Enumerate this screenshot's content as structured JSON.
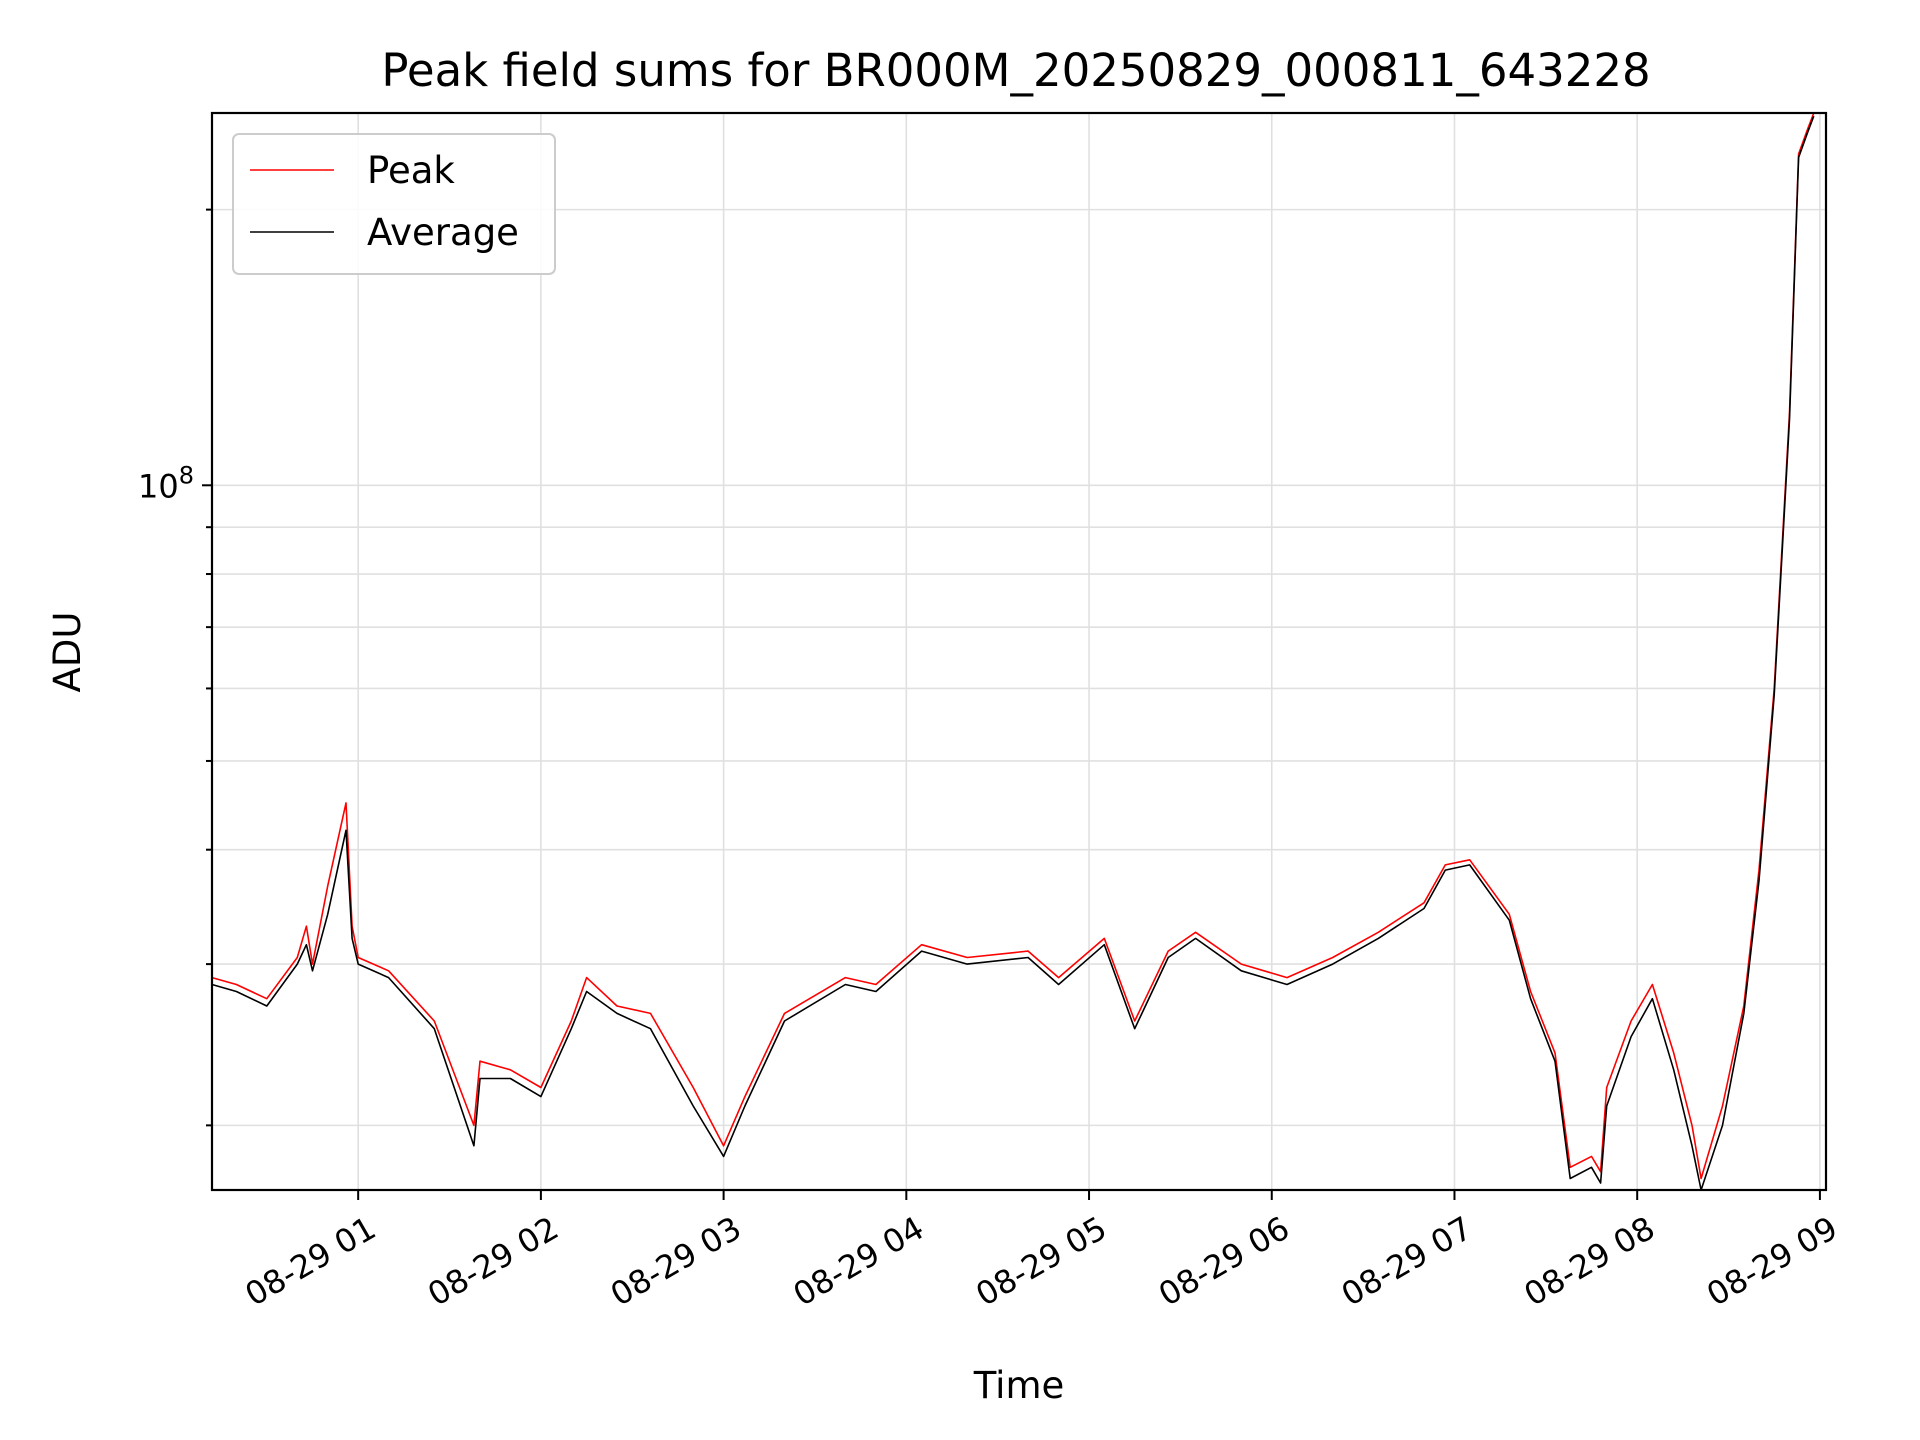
{
  "chart_data": {
    "type": "line",
    "title": "Peak field sums for BR000M_20250829_000811_643228",
    "xlabel": "Time",
    "ylabel": "ADU",
    "y_scale": "log",
    "grid": true,
    "legend_position": "top-left",
    "x_range": [
      "2025-08-29 00:12",
      "2025-08-29 09:02"
    ],
    "y_range": [
      17000000,
      255000000
    ],
    "x_ticks": [
      "08-29 01",
      "08-29 02",
      "08-29 03",
      "08-29 04",
      "08-29 05",
      "08-29 06",
      "08-29 07",
      "08-29 08",
      "08-29 09"
    ],
    "x_tick_times": [
      "2025-08-29 01:00",
      "2025-08-29 02:00",
      "2025-08-29 03:00",
      "2025-08-29 04:00",
      "2025-08-29 05:00",
      "2025-08-29 06:00",
      "2025-08-29 07:00",
      "2025-08-29 08:00",
      "2025-08-29 09:00"
    ],
    "y_major_tick": {
      "value": 100000000,
      "label_base": "10",
      "label_exp": "8"
    },
    "series": [
      {
        "name": "Peak",
        "color": "#ff0000",
        "x": [
          "2025-08-29 00:12",
          "2025-08-29 00:20",
          "2025-08-29 00:30",
          "2025-08-29 00:40",
          "2025-08-29 00:43",
          "2025-08-29 00:45",
          "2025-08-29 00:50",
          "2025-08-29 00:56",
          "2025-08-29 00:58",
          "2025-08-29 01:00",
          "2025-08-29 01:10",
          "2025-08-29 01:25",
          "2025-08-29 01:38",
          "2025-08-29 01:40",
          "2025-08-29 01:50",
          "2025-08-29 02:00",
          "2025-08-29 02:10",
          "2025-08-29 02:15",
          "2025-08-29 02:25",
          "2025-08-29 02:36",
          "2025-08-29 02:50",
          "2025-08-29 03:00",
          "2025-08-29 03:07",
          "2025-08-29 03:20",
          "2025-08-29 03:40",
          "2025-08-29 03:50",
          "2025-08-29 04:05",
          "2025-08-29 04:20",
          "2025-08-29 04:40",
          "2025-08-29 04:50",
          "2025-08-29 05:05",
          "2025-08-29 05:15",
          "2025-08-29 05:26",
          "2025-08-29 05:35",
          "2025-08-29 05:50",
          "2025-08-29 06:05",
          "2025-08-29 06:20",
          "2025-08-29 06:35",
          "2025-08-29 06:50",
          "2025-08-29 06:57",
          "2025-08-29 07:05",
          "2025-08-29 07:10",
          "2025-08-29 07:18",
          "2025-08-29 07:25",
          "2025-08-29 07:33",
          "2025-08-29 07:38",
          "2025-08-29 07:45",
          "2025-08-29 07:48",
          "2025-08-29 07:50",
          "2025-08-29 07:58",
          "2025-08-29 08:05",
          "2025-08-29 08:12",
          "2025-08-29 08:18",
          "2025-08-29 08:21",
          "2025-08-29 08:28",
          "2025-08-29 08:35",
          "2025-08-29 08:40",
          "2025-08-29 08:45",
          "2025-08-29 08:50",
          "2025-08-29 08:53",
          "2025-08-29 08:56",
          "2025-08-29 08:58"
        ],
        "values": [
          29000000,
          28500000,
          27500000,
          30500000,
          33000000,
          30000000,
          36500000,
          45000000,
          33000000,
          30500000,
          29500000,
          26000000,
          20000000,
          23500000,
          23000000,
          22000000,
          26000000,
          29000000,
          27000000,
          26500000,
          22000000,
          19000000,
          21500000,
          26500000,
          29000000,
          28500000,
          31500000,
          30500000,
          31000000,
          29000000,
          32000000,
          26000000,
          31000000,
          32500000,
          30000000,
          29000000,
          30500000,
          32500000,
          35000000,
          38500000,
          39000000,
          37000000,
          34000000,
          28000000,
          24000000,
          18000000,
          18500000,
          17800000,
          22000000,
          26000000,
          28500000,
          24000000,
          20000000,
          17500000,
          21000000,
          27000000,
          38000000,
          60000000,
          120000000,
          230000000,
          245000000,
          255000000
        ]
      },
      {
        "name": "Average",
        "color": "#000000",
        "x": [
          "2025-08-29 00:12",
          "2025-08-29 00:20",
          "2025-08-29 00:30",
          "2025-08-29 00:40",
          "2025-08-29 00:43",
          "2025-08-29 00:45",
          "2025-08-29 00:50",
          "2025-08-29 00:56",
          "2025-08-29 00:58",
          "2025-08-29 01:00",
          "2025-08-29 01:10",
          "2025-08-29 01:25",
          "2025-08-29 01:38",
          "2025-08-29 01:40",
          "2025-08-29 01:50",
          "2025-08-29 02:00",
          "2025-08-29 02:10",
          "2025-08-29 02:15",
          "2025-08-29 02:25",
          "2025-08-29 02:36",
          "2025-08-29 02:50",
          "2025-08-29 03:00",
          "2025-08-29 03:07",
          "2025-08-29 03:20",
          "2025-08-29 03:40",
          "2025-08-29 03:50",
          "2025-08-29 04:05",
          "2025-08-29 04:20",
          "2025-08-29 04:40",
          "2025-08-29 04:50",
          "2025-08-29 05:05",
          "2025-08-29 05:15",
          "2025-08-29 05:26",
          "2025-08-29 05:35",
          "2025-08-29 05:50",
          "2025-08-29 06:05",
          "2025-08-29 06:20",
          "2025-08-29 06:35",
          "2025-08-29 06:50",
          "2025-08-29 06:57",
          "2025-08-29 07:05",
          "2025-08-29 07:10",
          "2025-08-29 07:18",
          "2025-08-29 07:25",
          "2025-08-29 07:33",
          "2025-08-29 07:38",
          "2025-08-29 07:45",
          "2025-08-29 07:48",
          "2025-08-29 07:50",
          "2025-08-29 07:58",
          "2025-08-29 08:05",
          "2025-08-29 08:12",
          "2025-08-29 08:18",
          "2025-08-29 08:21",
          "2025-08-29 08:28",
          "2025-08-29 08:35",
          "2025-08-29 08:40",
          "2025-08-29 08:45",
          "2025-08-29 08:50",
          "2025-08-29 08:53",
          "2025-08-29 08:56",
          "2025-08-29 08:58"
        ],
        "values": [
          28500000,
          28000000,
          27000000,
          30000000,
          31500000,
          29500000,
          34000000,
          42000000,
          32000000,
          30000000,
          29000000,
          25500000,
          19000000,
          22500000,
          22500000,
          21500000,
          25500000,
          28000000,
          26500000,
          25500000,
          21000000,
          18500000,
          21000000,
          26000000,
          28500000,
          28000000,
          31000000,
          30000000,
          30500000,
          28500000,
          31500000,
          25500000,
          30500000,
          32000000,
          29500000,
          28500000,
          30000000,
          32000000,
          34500000,
          38000000,
          38500000,
          36500000,
          33500000,
          27500000,
          23500000,
          17500000,
          18000000,
          17300000,
          21000000,
          25000000,
          27500000,
          23000000,
          19000000,
          17000000,
          20000000,
          26500000,
          37000000,
          59000000,
          118000000,
          228000000,
          243000000,
          253000000
        ]
      }
    ]
  }
}
